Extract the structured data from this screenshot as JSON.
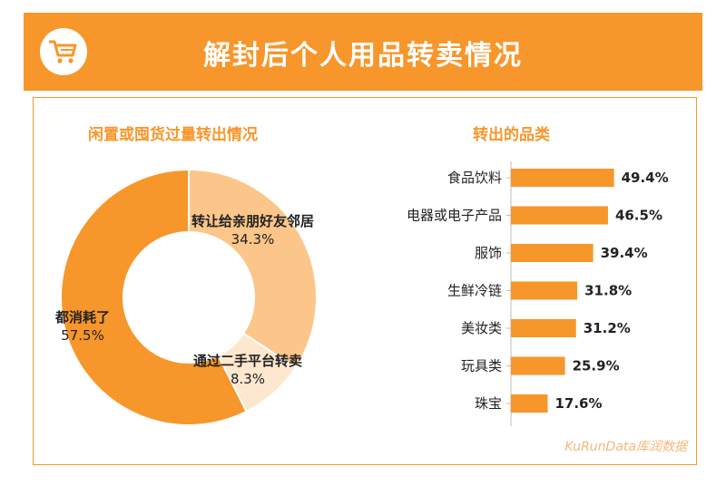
{
  "header": {
    "title": "解封后个人用品转卖情况",
    "icon": "shopping-cart-icon"
  },
  "colors": {
    "accent": "#f7962a",
    "slice_main": "#f7962a",
    "slice_light": "#fcc68a",
    "slice_pale": "#fde7cf",
    "bar": "#f7962a"
  },
  "left_panel": {
    "title": "闲置或囤货过量转出情况",
    "labels": {
      "slice0_name": "都消耗了",
      "slice0_pct": "57.5%",
      "slice1_name": "转让给亲朋好友邻居",
      "slice1_pct": "34.3%",
      "slice2_name": "通过二手平台转卖",
      "slice2_pct": "8.3%"
    }
  },
  "right_panel": {
    "title": "转出的品类"
  },
  "watermark": "KuRunData库润数据",
  "chart_data": [
    {
      "type": "pie",
      "title": "闲置或囤货过量转出情况",
      "donut": true,
      "categories": [
        "都消耗了",
        "转让给亲朋好友邻居",
        "通过二手平台转卖"
      ],
      "values": [
        57.5,
        34.3,
        8.3
      ],
      "unit": "%"
    },
    {
      "type": "bar",
      "orientation": "horizontal",
      "title": "转出的品类",
      "categories": [
        "食品饮料",
        "电器或电子产品",
        "服饰",
        "生鲜冷链",
        "美妆类",
        "玩具类",
        "珠宝"
      ],
      "values": [
        49.4,
        46.5,
        39.4,
        31.8,
        31.2,
        25.9,
        17.6
      ],
      "value_labels": [
        "49.4%",
        "46.5%",
        "39.4%",
        "31.8%",
        "31.2%",
        "25.9%",
        "17.6%"
      ],
      "unit": "%"
    }
  ]
}
